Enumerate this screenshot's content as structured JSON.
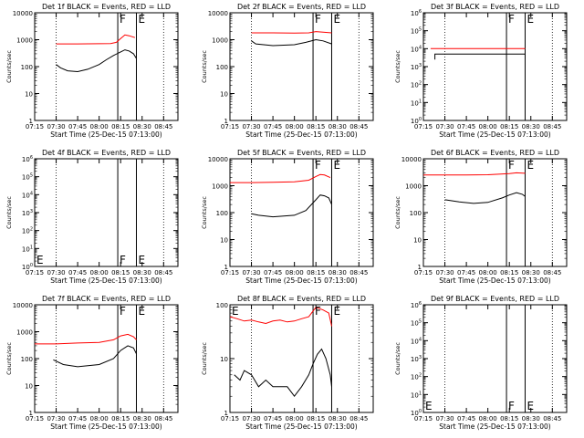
{
  "figure": {
    "x_tick_labels": [
      "07:15",
      "07:30",
      "07:45",
      "08:00",
      "08:15",
      "08:30",
      "08:45"
    ],
    "x_label": "Start Time (25-Dec-15 07:13:00)",
    "y_label": "Counts/sec",
    "line_colors": {
      "events": "#000000",
      "lld": "#ff0000"
    }
  },
  "chart_data": [
    {
      "type": "line",
      "title": "Det 1f BLACK = Events, RED = LLD",
      "xlabel": "Start Time (25-Dec-15 07:13:00)",
      "ylabel": "Counts/sec",
      "xlim": [
        "07:15",
        "08:55"
      ],
      "ylim": [
        1,
        10000
      ],
      "yscale": "log",
      "y_tick_labels": [
        "1",
        "10",
        "100",
        "1000",
        "10000"
      ],
      "series": [
        {
          "color": "#ff0000",
          "x": [
            "07:30",
            "07:45",
            "08:00",
            "08:08",
            "08:12",
            "08:15",
            "08:18",
            "08:21",
            "08:25"
          ],
          "y": [
            700,
            700,
            710,
            720,
            800,
            1100,
            1500,
            1400,
            1200
          ]
        },
        {
          "color": "#000000",
          "x": [
            "07:30",
            "07:33",
            "07:38",
            "07:45",
            "07:52",
            "08:00",
            "08:05",
            "08:10",
            "08:15",
            "08:18",
            "08:21",
            "08:24",
            "08:26"
          ],
          "y": [
            120,
            90,
            70,
            65,
            80,
            120,
            180,
            260,
            350,
            420,
            380,
            300,
            200
          ]
        }
      ],
      "vlines_dotted": [
        "07:30",
        "08:45"
      ],
      "vlines_solid": [
        "08:13",
        "08:26"
      ],
      "annotations": [
        {
          "text": "F",
          "x": "08:13",
          "pos": "top"
        },
        {
          "text": "E",
          "x": "08:26",
          "pos": "top"
        }
      ]
    },
    {
      "type": "line",
      "title": "Det 2f BLACK = Events, RED = LLD",
      "xlabel": "Start Time (25-Dec-15 07:13:00)",
      "ylabel": "Counts/sec",
      "xlim": [
        "07:15",
        "08:55"
      ],
      "ylim": [
        1,
        10000
      ],
      "yscale": "log",
      "y_tick_labels": [
        "1",
        "10",
        "100",
        "1000",
        "10000"
      ],
      "series": [
        {
          "color": "#ff0000",
          "x": [
            "07:30",
            "07:45",
            "08:00",
            "08:10",
            "08:15",
            "08:20",
            "08:26"
          ],
          "y": [
            1800,
            1800,
            1750,
            1800,
            2000,
            1900,
            1800
          ]
        },
        {
          "color": "#000000",
          "x": [
            "07:30",
            "07:33",
            "07:45",
            "08:00",
            "08:08",
            "08:15",
            "08:20",
            "08:26"
          ],
          "y": [
            900,
            700,
            600,
            650,
            800,
            1000,
            900,
            700
          ]
        }
      ],
      "vlines_dotted": [
        "07:30",
        "08:45"
      ],
      "vlines_solid": [
        "08:13",
        "08:26"
      ],
      "annotations": [
        {
          "text": "F",
          "x": "08:13",
          "pos": "top"
        },
        {
          "text": "E",
          "x": "08:26",
          "pos": "top"
        }
      ]
    },
    {
      "type": "line",
      "title": "Det 3f BLACK = Events, RED = LLD",
      "xlabel": "Start Time (25-Dec-15 07:13:00)",
      "ylabel": "Counts/sec",
      "xlim": [
        "07:15",
        "08:55"
      ],
      "ylim": [
        1,
        1000000
      ],
      "yscale": "log",
      "y_tick_labels": [
        "10^0",
        "10^1",
        "10^2",
        "10^3",
        "10^4",
        "10^5",
        "10^6"
      ],
      "series": [
        {
          "color": "#ff0000",
          "x": [
            "07:20",
            "07:45",
            "08:00",
            "08:15",
            "08:26"
          ],
          "y": [
            10000,
            10000,
            10000,
            10000,
            10000
          ]
        },
        {
          "color": "#000000",
          "x": [
            "07:23",
            "07:23",
            "08:26",
            "08:26"
          ],
          "y": [
            2500,
            5000,
            5000,
            2500
          ]
        }
      ],
      "vlines_dotted": [
        "07:30",
        "08:45"
      ],
      "vlines_solid": [
        "08:13",
        "08:26"
      ],
      "annotations": [
        {
          "text": "F",
          "x": "08:13",
          "pos": "top"
        },
        {
          "text": "E",
          "x": "08:26",
          "pos": "top"
        }
      ]
    },
    {
      "type": "line",
      "title": "Det 4f BLACK = Events, RED = LLD",
      "xlabel": "Start Time (25-Dec-15 07:13:00)",
      "ylabel": "Counts/sec",
      "xlim": [
        "07:15",
        "08:55"
      ],
      "ylim": [
        1,
        1000000
      ],
      "yscale": "log",
      "y_tick_labels": [
        "10^0",
        "10^1",
        "10^2",
        "10^3",
        "10^4",
        "10^5",
        "10^6"
      ],
      "series": [],
      "vlines_dotted": [
        "07:30",
        "08:45"
      ],
      "vlines_solid": [
        "08:13",
        "08:26"
      ],
      "annotations": [
        {
          "text": "E",
          "x": "07:15",
          "pos": "bottom"
        },
        {
          "text": "F",
          "x": "08:13",
          "pos": "bottom"
        },
        {
          "text": "E",
          "x": "08:26",
          "pos": "bottom"
        }
      ]
    },
    {
      "type": "line",
      "title": "Det 5f BLACK = Events, RED = LLD",
      "xlabel": "Start Time (25-Dec-15 07:13:00)",
      "ylabel": "Counts/sec",
      "xlim": [
        "07:15",
        "08:55"
      ],
      "ylim": [
        1,
        10000
      ],
      "yscale": "log",
      "y_tick_labels": [
        "1",
        "10",
        "100",
        "1000",
        "10000"
      ],
      "series": [
        {
          "color": "#ff0000",
          "x": [
            "07:15",
            "07:30",
            "07:45",
            "08:00",
            "08:10",
            "08:15",
            "08:18",
            "08:21",
            "08:25"
          ],
          "y": [
            1300,
            1300,
            1350,
            1400,
            1600,
            2200,
            2600,
            2500,
            2000
          ]
        },
        {
          "color": "#000000",
          "x": [
            "07:30",
            "07:35",
            "07:45",
            "08:00",
            "08:08",
            "08:15",
            "08:18",
            "08:21",
            "08:24",
            "08:26"
          ],
          "y": [
            90,
            80,
            70,
            80,
            120,
            300,
            450,
            420,
            350,
            200
          ]
        }
      ],
      "vlines_dotted": [
        "07:30",
        "08:45"
      ],
      "vlines_solid": [
        "08:13",
        "08:26"
      ],
      "annotations": [
        {
          "text": "F",
          "x": "08:13",
          "pos": "top"
        },
        {
          "text": "E",
          "x": "08:26",
          "pos": "top"
        }
      ]
    },
    {
      "type": "line",
      "title": "Det 6f BLACK = Events, RED = LLD",
      "xlabel": "Start Time (25-Dec-15 07:13:00)",
      "ylabel": "Counts/sec",
      "xlim": [
        "07:15",
        "08:55"
      ],
      "ylim": [
        1,
        10000
      ],
      "yscale": "log",
      "y_tick_labels": [
        "1",
        "10",
        "100",
        "1000",
        "10000"
      ],
      "series": [
        {
          "color": "#ff0000",
          "x": [
            "07:15",
            "07:45",
            "08:00",
            "08:15",
            "08:20",
            "08:26"
          ],
          "y": [
            2500,
            2500,
            2550,
            2800,
            3000,
            2900
          ]
        },
        {
          "color": "#000000",
          "x": [
            "07:30",
            "07:40",
            "07:50",
            "08:00",
            "08:10",
            "08:15",
            "08:20",
            "08:24",
            "08:26"
          ],
          "y": [
            300,
            250,
            220,
            240,
            350,
            450,
            550,
            480,
            400
          ]
        }
      ],
      "vlines_dotted": [
        "07:30",
        "08:45"
      ],
      "vlines_solid": [
        "08:13",
        "08:26"
      ],
      "annotations": [
        {
          "text": "F",
          "x": "08:13",
          "pos": "top"
        },
        {
          "text": "E",
          "x": "08:26",
          "pos": "top"
        }
      ]
    },
    {
      "type": "line",
      "title": "Det 7f BLACK = Events, RED = LLD",
      "xlabel": "Start Time (25-Dec-15 07:13:00)",
      "ylabel": "Counts/sec",
      "xlim": [
        "07:15",
        "08:55"
      ],
      "ylim": [
        1,
        10000
      ],
      "yscale": "log",
      "y_tick_labels": [
        "1",
        "10",
        "100",
        "1000",
        "10000"
      ],
      "series": [
        {
          "color": "#ff0000",
          "x": [
            "07:15",
            "07:30",
            "07:45",
            "08:00",
            "08:10",
            "08:15",
            "08:20",
            "08:24",
            "08:26"
          ],
          "y": [
            350,
            350,
            380,
            400,
            500,
            700,
            800,
            650,
            500
          ]
        },
        {
          "color": "#000000",
          "x": [
            "07:28",
            "07:35",
            "07:45",
            "08:00",
            "08:10",
            "08:15",
            "08:20",
            "08:24",
            "08:26"
          ],
          "y": [
            90,
            60,
            50,
            60,
            100,
            200,
            300,
            250,
            150
          ]
        }
      ],
      "vlines_dotted": [
        "07:30",
        "08:45"
      ],
      "vlines_solid": [
        "08:13",
        "08:26"
      ],
      "annotations": [
        {
          "text": "F",
          "x": "08:13",
          "pos": "top"
        },
        {
          "text": "E",
          "x": "08:26",
          "pos": "top"
        }
      ]
    },
    {
      "type": "line",
      "title": "Det 8f BLACK = Events, RED = LLD",
      "xlabel": "Start Time (25-Dec-15 07:13:00)",
      "ylabel": "Counts/sec",
      "xlim": [
        "07:15",
        "08:55"
      ],
      "ylim": [
        1,
        100
      ],
      "yscale": "log",
      "y_tick_labels": [
        "1",
        "10",
        "100"
      ],
      "series": [
        {
          "color": "#ff0000",
          "x": [
            "07:15",
            "07:20",
            "07:25",
            "07:30",
            "07:35",
            "07:40",
            "07:45",
            "07:50",
            "07:55",
            "08:00",
            "08:05",
            "08:10",
            "08:15",
            "08:20",
            "08:24",
            "08:26"
          ],
          "y": [
            60,
            55,
            50,
            52,
            48,
            45,
            50,
            52,
            48,
            50,
            55,
            60,
            90,
            80,
            70,
            40
          ]
        },
        {
          "color": "#000000",
          "x": [
            "07:18",
            "07:22",
            "07:25",
            "07:30",
            "07:35",
            "07:40",
            "07:45",
            "07:50",
            "07:55",
            "08:00",
            "08:05",
            "08:10",
            "08:13",
            "08:16",
            "08:19",
            "08:22",
            "08:25",
            "08:26"
          ],
          "y": [
            5,
            4,
            6,
            5,
            3,
            4,
            3,
            3,
            3,
            2,
            3,
            5,
            8,
            12,
            15,
            10,
            5,
            3
          ]
        }
      ],
      "vlines_dotted": [
        "07:30",
        "08:45"
      ],
      "vlines_solid": [
        "08:13",
        "08:26"
      ],
      "annotations": [
        {
          "text": "E",
          "x": "07:15",
          "pos": "top"
        },
        {
          "text": "F",
          "x": "08:13",
          "pos": "top"
        },
        {
          "text": "E",
          "x": "08:26",
          "pos": "top"
        }
      ]
    },
    {
      "type": "line",
      "title": "Det 9f BLACK = Events, RED = LLD",
      "xlabel": "Start Time (25-Dec-15 07:13:00)",
      "ylabel": "Counts/sec",
      "xlim": [
        "07:15",
        "08:55"
      ],
      "ylim": [
        1,
        1000000
      ],
      "yscale": "log",
      "y_tick_labels": [
        "10^0",
        "10^1",
        "10^2",
        "10^3",
        "10^4",
        "10^5",
        "10^6"
      ],
      "series": [],
      "vlines_dotted": [
        "07:30",
        "08:45"
      ],
      "vlines_solid": [
        "08:13",
        "08:26"
      ],
      "annotations": [
        {
          "text": "E",
          "x": "07:15",
          "pos": "bottom"
        },
        {
          "text": "F",
          "x": "08:13",
          "pos": "bottom"
        },
        {
          "text": "E",
          "x": "08:26",
          "pos": "bottom"
        }
      ]
    }
  ]
}
